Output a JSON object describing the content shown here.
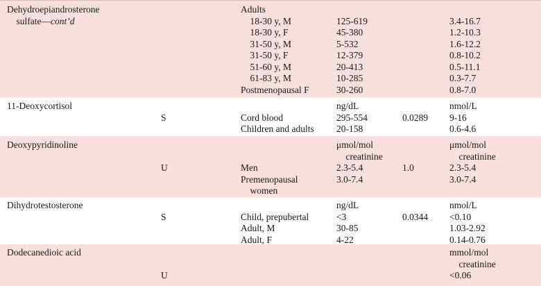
{
  "colors": {
    "band_pink": "#fadfdf",
    "band_white": "#ffffff",
    "text": "#171717",
    "top_rule": "#cfc0c0"
  },
  "table": {
    "sections": [
      {
        "shade": "pink",
        "rows": [
          {
            "cells": [
              "Dehydroepiandrosterone",
              "",
              "Adults",
              "",
              "",
              ""
            ]
          },
          {
            "cells": [
              {
                "t": "    sulfate—",
                "i": "cont’d"
              },
              "",
              "    18-30 y, M",
              "125-619",
              "",
              "3.4-16.7"
            ]
          },
          {
            "cells": [
              "",
              "",
              "    18-30 y, F",
              "45-380",
              "",
              "1.2-10.3"
            ]
          },
          {
            "cells": [
              "",
              "",
              "    31-50 y, M",
              "5-532",
              "",
              "1.6-12.2"
            ]
          },
          {
            "cells": [
              "",
              "",
              "    31-50 y, F",
              "12-379",
              "",
              "0.8-10.2"
            ]
          },
          {
            "cells": [
              "",
              "",
              "    51-60 y, M",
              "20-413",
              "",
              "0.5-11.1"
            ]
          },
          {
            "cells": [
              "",
              "",
              "    61-83 y, M",
              "10-285",
              "",
              "0.3-7.7"
            ]
          },
          {
            "cells": [
              "",
              "",
              "Postmenopausal F",
              "30-260",
              "",
              "0.8-7.0"
            ]
          }
        ]
      },
      {
        "shade": "white",
        "rows": [
          {
            "cells": [
              "11-Deoxycortisol",
              "",
              "",
              "ng/dL",
              "",
              "nmol/L"
            ]
          },
          {
            "cells": [
              "",
              "S",
              "Cord blood",
              "295-554",
              "0.0289",
              "9-16"
            ]
          },
          {
            "cells": [
              "",
              "",
              "Children and adults",
              "20-158",
              "",
              "0.6-4.6"
            ]
          }
        ]
      },
      {
        "shade": "pink",
        "rows": [
          {
            "cells": [
              "Deoxypyridinoline",
              "",
              "",
              "μmol/mol",
              "",
              "μmol/mol"
            ]
          },
          {
            "cells": [
              "",
              "",
              "",
              "    creatinine",
              "",
              "    creatinine"
            ]
          },
          {
            "cells": [
              "",
              "U",
              "Men",
              "2.3-5.4",
              "1.0",
              "2.3-5.4"
            ]
          },
          {
            "cells": [
              "",
              "",
              "Premenopausal",
              "3.0-7.4",
              "",
              "3.0-7.4"
            ]
          },
          {
            "cells": [
              "",
              "",
              "    women",
              "",
              "",
              ""
            ]
          }
        ]
      },
      {
        "shade": "white",
        "rows": [
          {
            "cells": [
              "Dihydrotestosterone",
              "",
              "",
              "ng/dL",
              "",
              "nmol/L"
            ]
          },
          {
            "cells": [
              "",
              "S",
              "Child, prepubertal",
              "<3",
              "0.0344",
              "<0.10"
            ]
          },
          {
            "cells": [
              "",
              "",
              "Adult, M",
              "30-85",
              "",
              "1.03-2.92"
            ]
          },
          {
            "cells": [
              "",
              "",
              "Adult, F",
              "4-22",
              "",
              "0.14-0.76"
            ]
          }
        ]
      },
      {
        "shade": "pink",
        "rows": [
          {
            "cells": [
              "Dodecanedioic acid",
              "",
              "",
              "",
              "",
              "mmol/mol"
            ]
          },
          {
            "cells": [
              "",
              "",
              "",
              "",
              "",
              "    creatinine"
            ]
          },
          {
            "cells": [
              "",
              "U",
              "",
              "",
              "",
              "<0.06"
            ]
          }
        ]
      }
    ]
  }
}
